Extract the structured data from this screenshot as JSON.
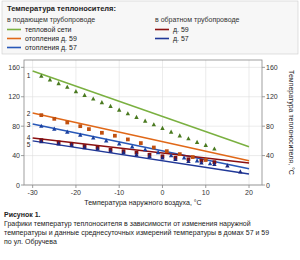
{
  "chart_data": {
    "type": "line",
    "title": "Температура теплоносителя:",
    "xlabel": "Температура наружного воздуха, °C",
    "ylabel": "Температура теплоносителя, °C",
    "caption": [
      "Рисунок 1.",
      "Графики температур теплоносителя в зависимости от изменения наружной",
      "температуры и данные среднесуточных измерений температуры в домах 57 и 59",
      "по ул. Обручева"
    ],
    "xlim": [
      -32,
      23
    ],
    "ylim": [
      0,
      170
    ],
    "xticks": [
      -30,
      -20,
      -10,
      0,
      10,
      20
    ],
    "yticks": [
      0,
      40,
      80,
      120,
      160
    ],
    "grid": true,
    "series": [
      {
        "name": "тепловой сети",
        "legend_group": "в подающем трубопроводе",
        "type": "line",
        "color": "#7ab040",
        "x": [
          -30,
          20
        ],
        "values": [
          155,
          52
        ]
      },
      {
        "name": "отопления д. 59",
        "type": "line",
        "color": "#e06818",
        "x": [
          -30,
          20
        ],
        "values": [
          98,
          33
        ]
      },
      {
        "name": "отопления д. 57",
        "type": "line",
        "color": "#2858b8",
        "x": [
          -30,
          20
        ],
        "values": [
          83,
          22
        ]
      },
      {
        "name": "д. 59",
        "legend_group": "в обратном трубопроводе",
        "type": "line",
        "color": "#8b1010",
        "x": [
          -30,
          20
        ],
        "values": [
          64,
          30
        ]
      },
      {
        "name": "д. 57",
        "type": "line",
        "color": "#203898",
        "x": [
          -30,
          20
        ],
        "values": [
          60,
          15
        ]
      },
      {
        "type": "scatter",
        "color": "#4a7a20",
        "marker": "triangle",
        "x": [
          -28,
          -26,
          -24,
          -22,
          -20,
          -18,
          -16,
          -14,
          -12,
          -10,
          -8,
          -6,
          -4,
          -2,
          0,
          2,
          4,
          6,
          8,
          10,
          12
        ],
        "values": [
          148,
          143,
          138,
          133,
          127,
          122,
          117,
          112,
          107,
          102,
          97,
          92,
          87,
          82,
          77,
          72,
          67,
          63,
          58,
          54,
          49
        ]
      },
      {
        "type": "scatter",
        "color": "#c05010",
        "marker": "square",
        "x": [
          -28,
          -25,
          -22,
          -19,
          -17,
          -14,
          -11,
          -8,
          -5,
          -2,
          1,
          4,
          7,
          10
        ],
        "values": [
          95,
          90,
          85,
          80,
          76,
          71,
          67,
          62,
          57,
          51,
          46,
          42,
          38,
          34
        ]
      },
      {
        "type": "scatter",
        "color": "#1a40a0",
        "marker": "triangle",
        "x": [
          -28,
          -25,
          -22,
          -19,
          -16,
          -13,
          -10,
          -7,
          -4,
          -1,
          2,
          5,
          8,
          11
        ],
        "values": [
          80,
          76,
          72,
          68,
          64,
          60,
          56,
          52,
          48,
          44,
          40,
          37,
          33,
          29
        ]
      },
      {
        "type": "scatter",
        "color": "#801010",
        "marker": "square",
        "x": [
          -28,
          -24,
          -21,
          -18,
          -15,
          -12,
          -9,
          -6,
          -3,
          0,
          3,
          6,
          9,
          12
        ],
        "values": [
          61,
          58,
          56,
          53,
          51,
          48,
          46,
          44,
          41,
          39,
          37,
          35,
          33,
          31
        ]
      },
      {
        "type": "scatter",
        "color": "#1a2880",
        "marker": "triangle",
        "x": [
          -28,
          -24,
          -21,
          -18,
          -15,
          -12,
          -9,
          -6,
          -3,
          0,
          3,
          6,
          9,
          12,
          15,
          18
        ],
        "values": [
          59,
          56,
          54,
          51,
          49,
          46,
          44,
          41,
          39,
          37,
          35,
          32,
          30,
          28,
          26,
          18
        ]
      }
    ],
    "annotations": [
      {
        "text": "1",
        "x": -30.5,
        "y": 148
      },
      {
        "text": "2",
        "x": -30.5,
        "y": 96
      },
      {
        "text": "3",
        "x": -30.5,
        "y": 81
      },
      {
        "text": "4",
        "x": -30.5,
        "y": 63
      },
      {
        "text": "5",
        "x": -30.5,
        "y": 58
      }
    ]
  }
}
